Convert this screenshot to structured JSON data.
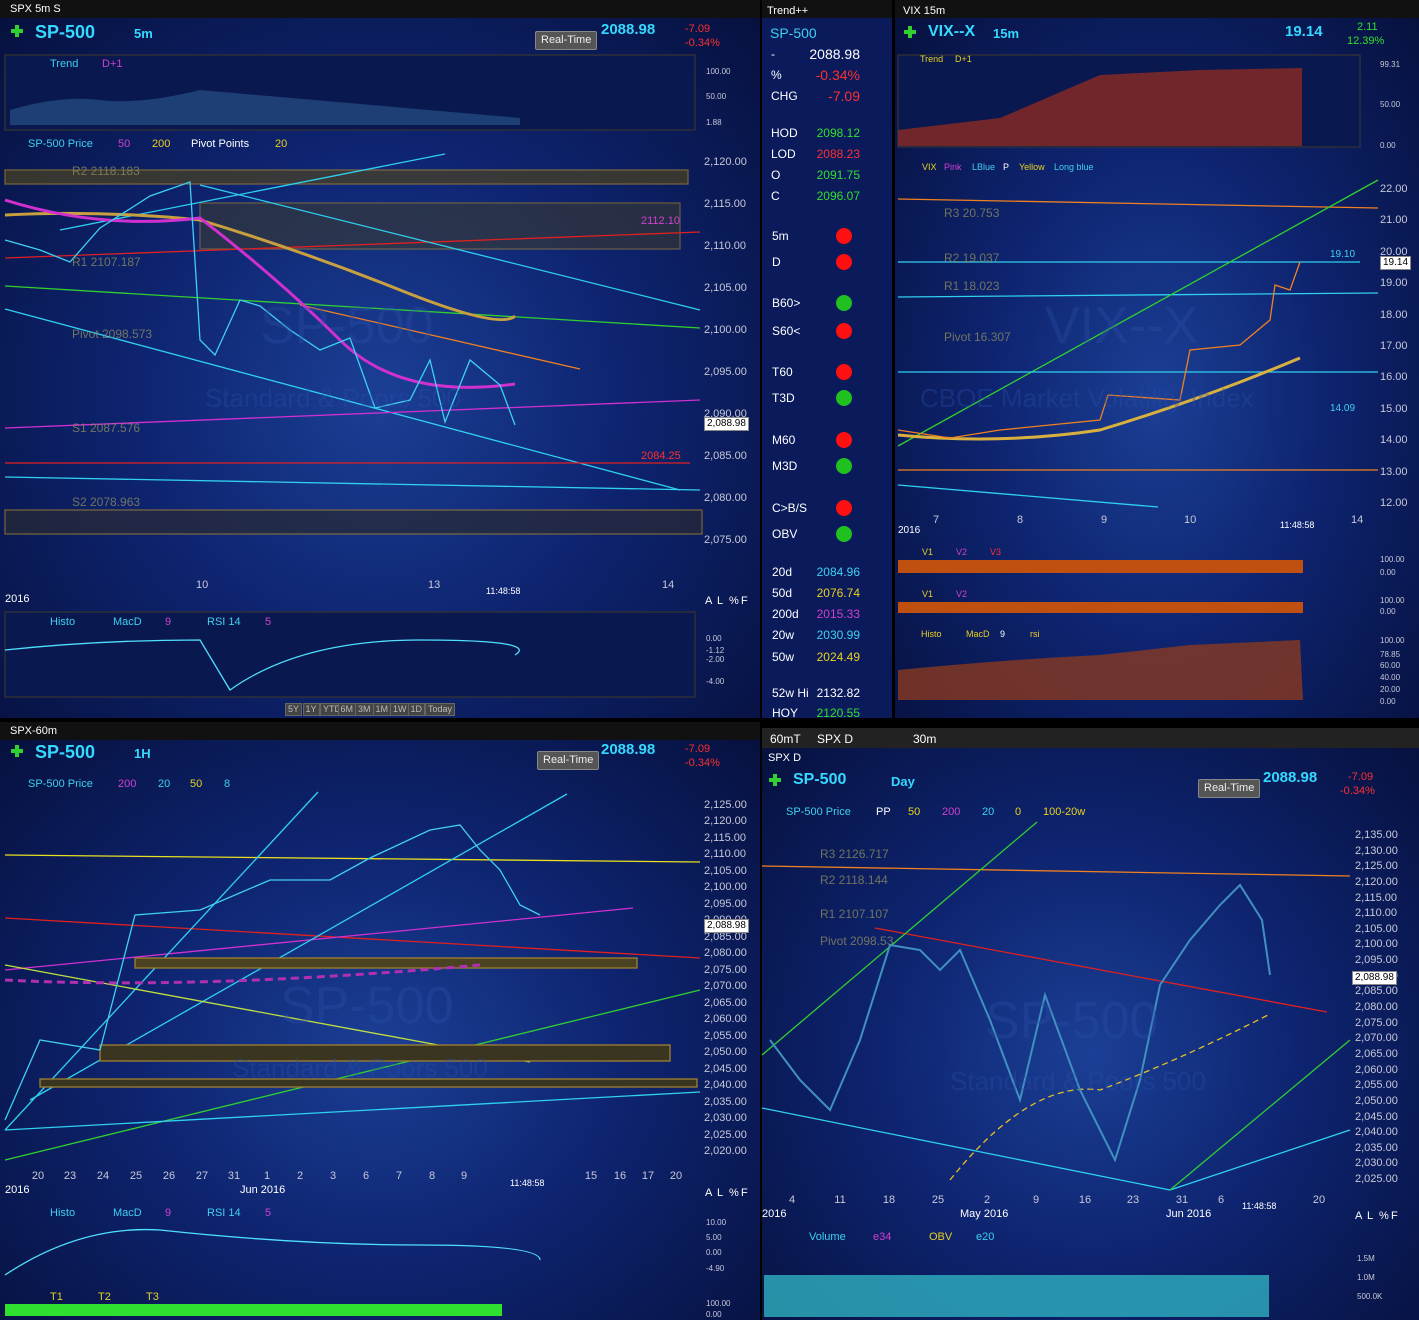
{
  "spx5m": {
    "title": "SPX 5m S",
    "symbol": "SP-500",
    "interval": "5m",
    "badge": "Real-Time",
    "price": "2088.98",
    "change": "-7.09",
    "change_pct": "-0.34%",
    "trend_study": "Trend",
    "trend_param": "D+1",
    "trend_scale": [
      "100.00",
      "50.00",
      "1.88"
    ],
    "price_study": "SP-500 Price",
    "params": [
      "50",
      "200",
      "Pivot Points",
      "20"
    ],
    "levels": [
      "R2 2118.183",
      "R1 2107.187",
      "Pivot 2098.573",
      "S1 2087.576",
      "S2 2078.963"
    ],
    "level_values": [
      "2112.10",
      "2084.25"
    ],
    "yticks": [
      "2,120.00",
      "2,115.00",
      "2,110.00",
      "2,105.00",
      "2,100.00",
      "2,095.00",
      "2,090.00",
      "2,085.00",
      "2,080.00",
      "2,075.00"
    ],
    "price_tag": "2,088.98",
    "xticks": [
      "10",
      "13",
      "14"
    ],
    "year": "2016",
    "time": "11:48:58",
    "scale_buttons": [
      "A",
      "L",
      "%",
      "F"
    ],
    "lower_studies": [
      "Histo",
      "MacD",
      "9",
      "RSI 14",
      "5"
    ],
    "lower_scale": [
      "0.00",
      "-1.12",
      "-2.00",
      "-4.00"
    ],
    "range_buttons": [
      "5Y",
      "1Y",
      "YTD",
      "6M",
      "3M",
      "1M",
      "1W",
      "1D",
      "Today"
    ],
    "watermark": [
      "SP-500",
      "Standard & Poors 500"
    ]
  },
  "watchlist": {
    "title": "Trend++",
    "symbol": "SP-500",
    "quote": [
      [
        "-",
        "2088.98"
      ],
      [
        "%",
        "-0.34%"
      ],
      [
        "CHG",
        "-7.09"
      ]
    ],
    "ohlc": [
      [
        "HOD",
        "2098.12"
      ],
      [
        "LOD",
        "2088.23"
      ],
      [
        "O",
        "2091.75"
      ],
      [
        "C",
        "2096.07"
      ]
    ],
    "signals": [
      {
        "name": "5m",
        "color": "#ff1010"
      },
      {
        "name": "D",
        "color": "#ff1010"
      },
      {
        "name": "B60>",
        "color": "#20c020"
      },
      {
        "name": "S60<",
        "color": "#ff1010"
      },
      {
        "name": "T60",
        "color": "#ff1010"
      },
      {
        "name": "T3D",
        "color": "#20c020"
      },
      {
        "name": "M60",
        "color": "#ff1010"
      },
      {
        "name": "M3D",
        "color": "#20c020"
      },
      {
        "name": "C>B/S",
        "color": "#ff1010"
      },
      {
        "name": "OBV",
        "color": "#20c020"
      }
    ],
    "averages": [
      [
        "20d",
        "2084.96"
      ],
      [
        "50d",
        "2076.74"
      ],
      [
        "200d",
        "2015.33"
      ],
      [
        "20w",
        "2030.99"
      ],
      [
        "50w",
        "2024.49"
      ],
      [
        "52w Hi",
        "2132.82"
      ],
      [
        "HOY",
        "2120.55"
      ]
    ]
  },
  "vix": {
    "title": "VIX 15m",
    "symbol": "VIX--X",
    "interval": "15m",
    "price": "19.14",
    "change": "2.11",
    "change_pct": "12.39%",
    "trend_study": "Trend",
    "trend_param": "D+1",
    "trend_scale": [
      "99.31",
      "50.00",
      "0.00"
    ],
    "studies": [
      "VIX",
      "Pink",
      "LBlue",
      "P",
      "Yellow",
      "Long blue"
    ],
    "levels": [
      "R3 20.753",
      "R2 19.037",
      "R1 18.023",
      "Pivot 16.307"
    ],
    "level_values": [
      "19.10",
      "14.09"
    ],
    "yticks": [
      "22.00",
      "21.00",
      "20.00",
      "19.00",
      "18.00",
      "17.00",
      "16.00",
      "15.00",
      "14.00",
      "13.00",
      "12.00"
    ],
    "price_tag": "19.14",
    "xticks": [
      "7",
      "8",
      "9",
      "10",
      "14"
    ],
    "year": "2016",
    "time": "11:48:58",
    "v_studies": [
      "V1",
      "V2",
      "V3"
    ],
    "v_scale": [
      "100.00",
      "0.00"
    ],
    "v2_studies": [
      "V1",
      "V2"
    ],
    "v2_scale": [
      "100.00",
      "0.00"
    ],
    "lower_studies": [
      "Histo",
      "MacD",
      "9",
      "rsi"
    ],
    "lower_scale": [
      "100.00",
      "78.85",
      "60.00",
      "40.00",
      "20.00",
      "0.00"
    ],
    "watermark": [
      "VIX--X",
      "CBOE Market Volatility Index"
    ]
  },
  "spx60m": {
    "title": "SPX-60m",
    "symbol": "SP-500",
    "interval": "1H",
    "badge": "Real-Time",
    "price": "2088.98",
    "change": "-7.09",
    "change_pct": "-0.34%",
    "price_study": "SP-500 Price",
    "params": [
      "200",
      "20",
      "50",
      "8"
    ],
    "yticks": [
      "2,125.00",
      "2,120.00",
      "2,115.00",
      "2,110.00",
      "2,105.00",
      "2,100.00",
      "2,095.00",
      "2,090.00",
      "2,085.00",
      "2,080.00",
      "2,075.00",
      "2,070.00",
      "2,065.00",
      "2,060.00",
      "2,055.00",
      "2,050.00",
      "2,045.00",
      "2,040.00",
      "2,035.00",
      "2,030.00",
      "2,025.00",
      "2,020.00"
    ],
    "price_tag": "2,088.98",
    "xticks": [
      "20",
      "23",
      "24",
      "25",
      "26",
      "27",
      "31",
      "1",
      "2",
      "3",
      "6",
      "7",
      "8",
      "9",
      "15",
      "16",
      "17",
      "20"
    ],
    "year": "2016",
    "month": "Jun 2016",
    "time": "11:48:58",
    "scale_buttons": [
      "A",
      "L",
      "%",
      "F"
    ],
    "lower_studies": [
      "Histo",
      "MacD",
      "9",
      "RSI 14",
      "5"
    ],
    "lower_scale": [
      "10.00",
      "5.00",
      "0.00",
      "-4.90"
    ],
    "t_studies": [
      "T1",
      "T2",
      "T3"
    ],
    "t_scale": [
      "100.00",
      "0.00"
    ],
    "watermark": [
      "SP-500",
      "Standard & Poors 500"
    ]
  },
  "spxd": {
    "tabs": [
      "60mT",
      "SPX D",
      "30m"
    ],
    "title": "SPX D",
    "symbol": "SP-500",
    "interval": "Day",
    "badge": "Real-Time",
    "price": "2088.98",
    "change": "-7.09",
    "change_pct": "-0.34%",
    "price_study": "SP-500 Price",
    "params": [
      "PP",
      "50",
      "200",
      "20",
      "0",
      "100-20w"
    ],
    "levels": [
      "R3 2126.717",
      "R2 2118.144",
      "R1 2107.107",
      "Pivot 2098.53"
    ],
    "yticks": [
      "2,135.00",
      "2,130.00",
      "2,125.00",
      "2,120.00",
      "2,115.00",
      "2,110.00",
      "2,105.00",
      "2,100.00",
      "2,095.00",
      "2,090.00",
      "2,085.00",
      "2,080.00",
      "2,075.00",
      "2,070.00",
      "2,065.00",
      "2,060.00",
      "2,055.00",
      "2,050.00",
      "2,045.00",
      "2,040.00",
      "2,035.00",
      "2,030.00",
      "2,025.00"
    ],
    "price_tag": "2,088.98",
    "xticks": [
      "4",
      "11",
      "18",
      "25",
      "2",
      "9",
      "16",
      "23",
      "31",
      "6",
      "20"
    ],
    "year": "2016",
    "month1": "May 2016",
    "month2": "Jun 2016",
    "time": "11:48:58",
    "scale_buttons": [
      "A",
      "L",
      "%",
      "F"
    ],
    "lower_studies": [
      "Volume",
      "e34",
      "OBV",
      "e20"
    ],
    "lower_scale": [
      "1.5M",
      "1.0M",
      "500.0K"
    ],
    "watermark": [
      "SP-500",
      "Standard & Poors 500"
    ]
  }
}
